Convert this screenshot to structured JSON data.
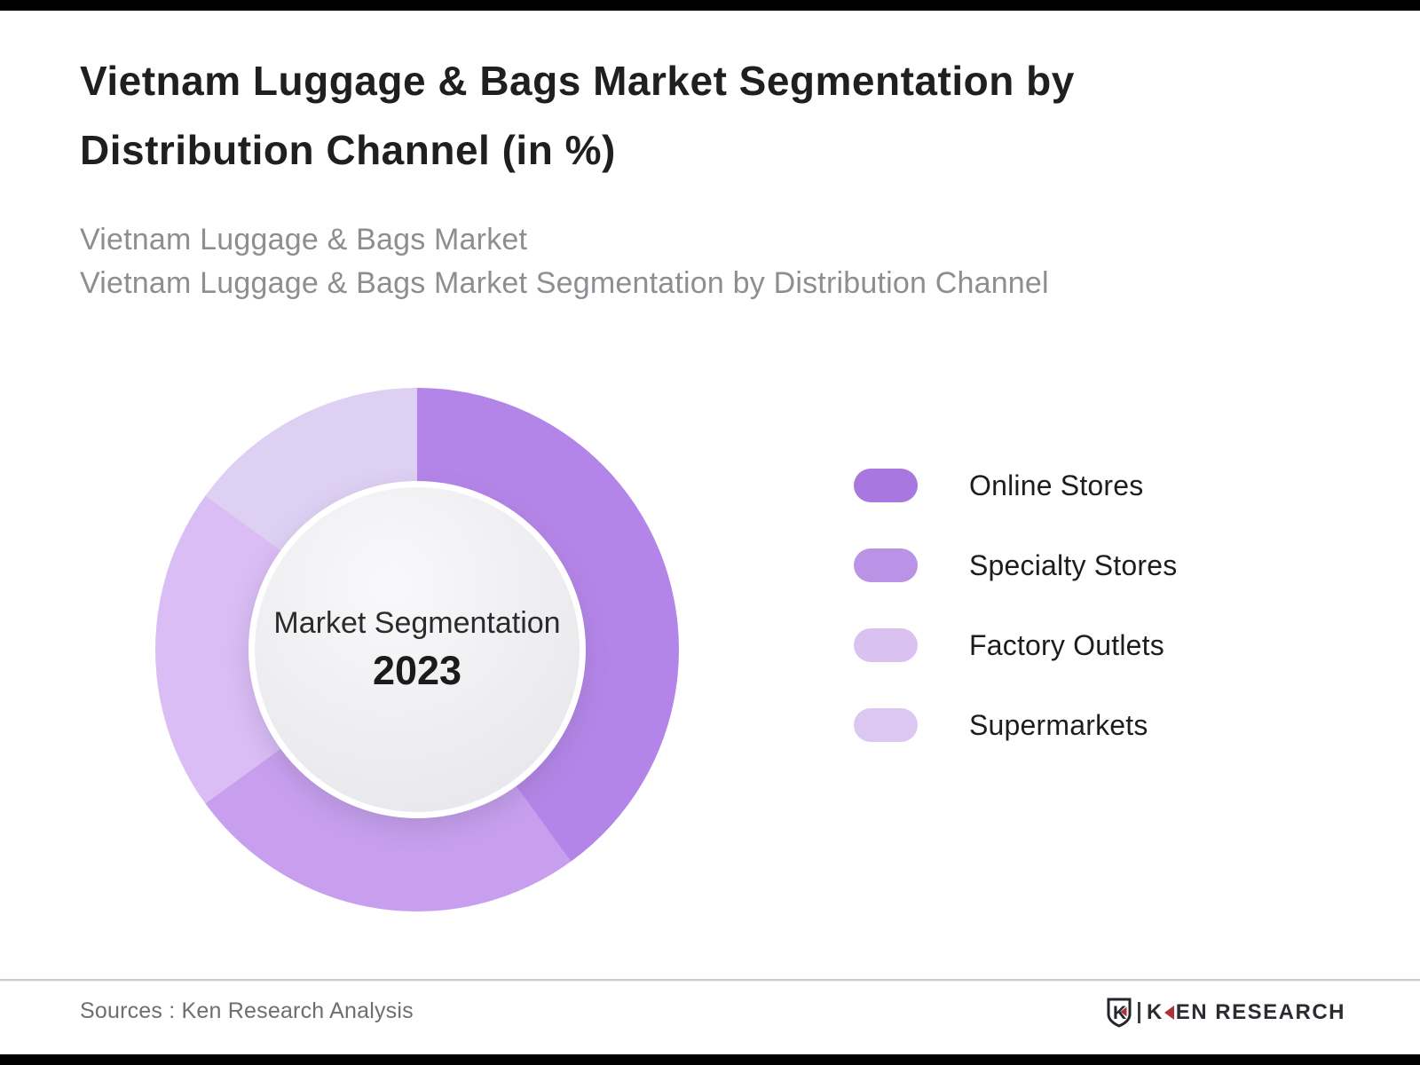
{
  "header": {
    "title": "Vietnam Luggage & Bags Market Segmentation by Distribution Channel (in %)",
    "subtitle_line1": "Vietnam Luggage & Bags Market",
    "subtitle_line2": "Vietnam Luggage & Bags Market Segmentation by Distribution Channel"
  },
  "chart_data": {
    "type": "pie",
    "subtype": "donut",
    "title": "Vietnam Luggage & Bags Market Segmentation by Distribution Channel (in %)",
    "center_label": "Market Segmentation",
    "center_year": "2023",
    "categories": [
      "Online Stores",
      "Specialty Stores",
      "Factory Outlets",
      "Supermarkets"
    ],
    "values": [
      40,
      25,
      20,
      15
    ],
    "unit": "%",
    "colors": [
      "#b485e8",
      "#c79fee",
      "#d9bdf4",
      "#ded0f3"
    ],
    "start_angle_deg": 0,
    "direction": "clockwise",
    "legend_position": "right"
  },
  "legend": {
    "items": [
      {
        "label": "Online Stores",
        "color": "#a877e0"
      },
      {
        "label": "Specialty Stores",
        "color": "#bb93e6"
      },
      {
        "label": "Factory Outlets",
        "color": "#d9c2f0"
      },
      {
        "label": "Supermarkets",
        "color": "#dbc7f2"
      }
    ]
  },
  "footer": {
    "sources": "Sources : Ken Research Analysis",
    "emblem_letter": "K",
    "logo_k": "K",
    "logo_rest": "EN RESEARCH"
  }
}
